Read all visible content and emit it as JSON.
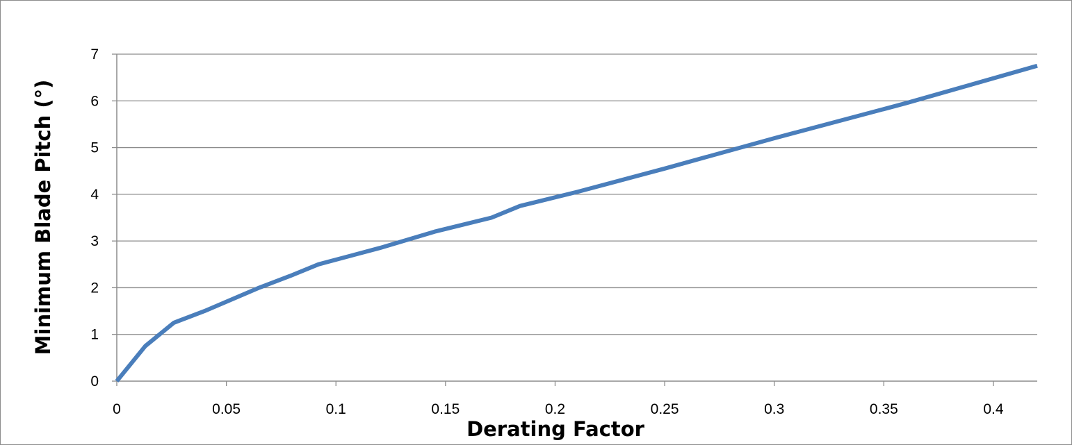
{
  "chart_data": {
    "type": "line",
    "title": "",
    "xlabel": "Derating Factor",
    "ylabel": "Minimum Blade Pitch (°)",
    "xlim": [
      0,
      0.42
    ],
    "ylim": [
      0,
      7
    ],
    "xticks": [
      0,
      0.05,
      0.1,
      0.15,
      0.2,
      0.25,
      0.3,
      0.35,
      0.4
    ],
    "xtick_labels": [
      "0",
      "0.05",
      "0.1",
      "0.15",
      "0.2",
      "0.25",
      "0.3",
      "0.35",
      "0.4"
    ],
    "yticks": [
      0,
      1,
      2,
      3,
      4,
      5,
      6,
      7
    ],
    "ytick_labels": [
      "0",
      "1",
      "2",
      "3",
      "4",
      "5",
      "6",
      "7"
    ],
    "grid": "horizontal",
    "legend": "none",
    "series": [
      {
        "color": "#4a7ebb",
        "x": [
          0,
          0.013,
          0.026,
          0.04,
          0.065,
          0.079,
          0.092,
          0.12,
          0.145,
          0.171,
          0.184,
          0.21,
          0.25,
          0.3,
          0.36,
          0.42
        ],
        "y": [
          0,
          0.75,
          1.25,
          1.5,
          2.0,
          2.25,
          2.5,
          2.85,
          3.2,
          3.5,
          3.75,
          4.05,
          4.55,
          5.2,
          5.95,
          6.75
        ]
      }
    ]
  }
}
